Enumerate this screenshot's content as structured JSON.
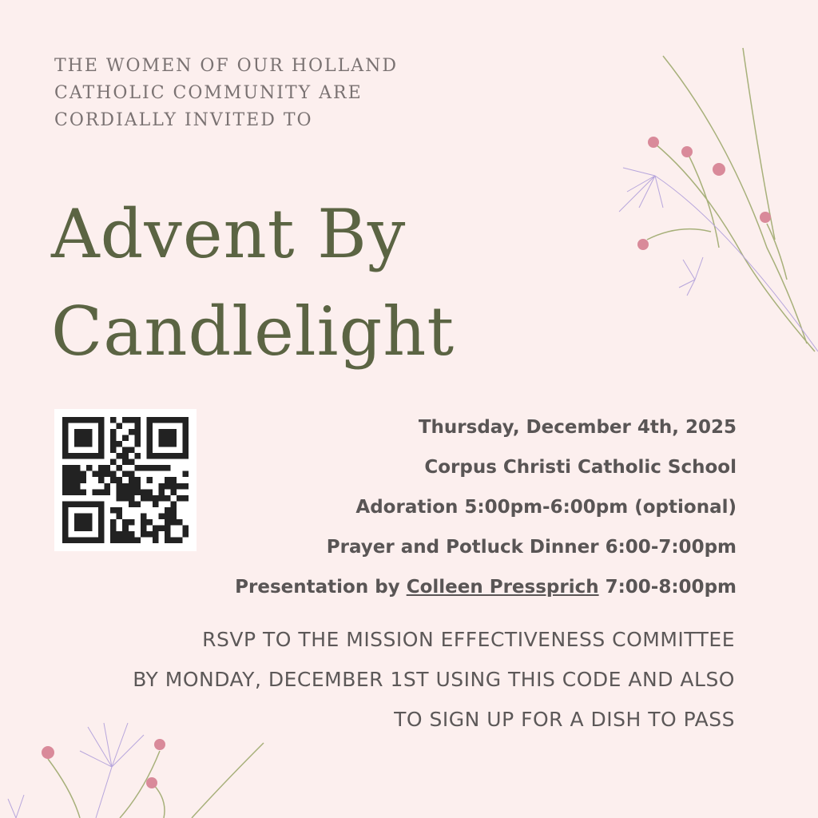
{
  "intro": [
    "THE WOMEN OF OUR HOLLAND",
    "CATHOLIC COMMUNITY ARE",
    "CORDIALLY INVITED TO"
  ],
  "title": [
    "Advent By",
    "Candlelight"
  ],
  "details": {
    "date": "Thursday, December 4th, 2025",
    "location": "Corpus Christi Catholic School",
    "adoration": "Adoration 5:00pm-6:00pm (optional)",
    "dinner": "Prayer and Potluck Dinner 6:00-7:00pm",
    "presentation_prefix": "Presentation by ",
    "presenter": "Colleen Pressprich",
    "presentation_time": " 7:00-8:00pm"
  },
  "rsvp": [
    "RSVP TO THE MISSION EFFECTIVENESS COMMITTEE",
    "BY MONDAY, DECEMBER 1ST USING THIS CODE AND ALSO",
    "TO SIGN UP FOR A DISH TO PASS"
  ],
  "colors": {
    "background": "#fcefee",
    "title": "#5b6443",
    "text": "#595555",
    "flower": "#d98a9a",
    "stem": "#9aa66a"
  }
}
